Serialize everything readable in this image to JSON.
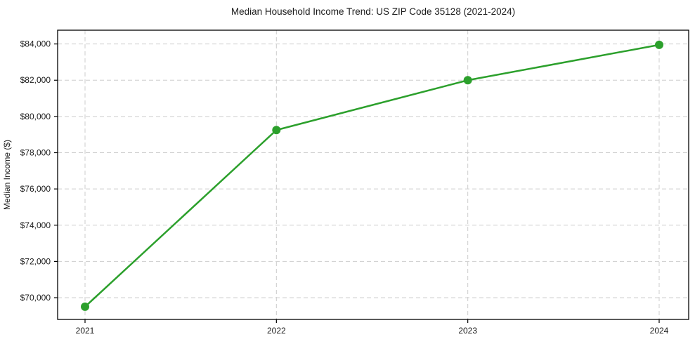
{
  "chart_data": {
    "type": "line",
    "title": "Median Household Income Trend: US ZIP Code 35128 (2021-2024)",
    "xlabel": "",
    "ylabel": "Median Income ($)",
    "x": [
      2021,
      2022,
      2023,
      2024
    ],
    "x_tick_labels": [
      "2021",
      "2022",
      "2023",
      "2024"
    ],
    "series": [
      {
        "name": "Median Household Income",
        "values": [
          69500,
          79250,
          82000,
          83950
        ]
      }
    ],
    "y_ticks": [
      70000,
      72000,
      74000,
      76000,
      78000,
      80000,
      82000,
      84000
    ],
    "y_tick_labels": [
      "$70,000",
      "$72,000",
      "$74,000",
      "$76,000",
      "$78,000",
      "$80,000",
      "$82,000",
      "$84,000"
    ],
    "ylim": [
      68800,
      84760
    ],
    "grid": true,
    "grid_style": "dashed",
    "legend_position": "none",
    "colors": {
      "line": "#2ca02c",
      "marker": "#2ca02c",
      "grid": "#cdcdcd",
      "frame": "#000000",
      "text": "#1a1a1a",
      "background": "#ffffff"
    }
  }
}
